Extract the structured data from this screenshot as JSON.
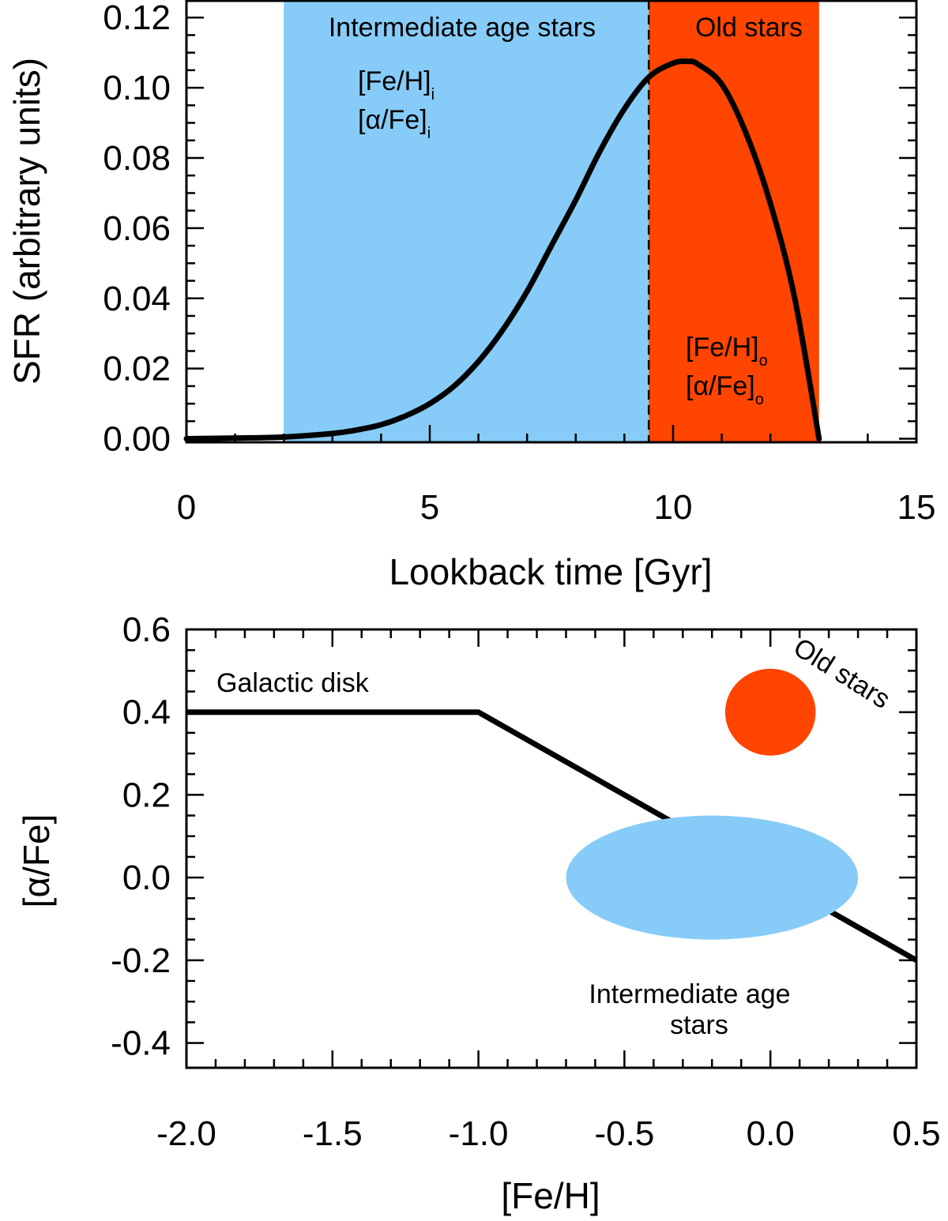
{
  "colors": {
    "intermediate": "#87CCF8",
    "old": "#FF4500",
    "line": "#000000"
  },
  "chart_data": [
    {
      "type": "line",
      "xlabel": "Lookback time [Gyr]",
      "ylabel": "SFR (arbitrary units)",
      "xlim": [
        0,
        15
      ],
      "ylim": [
        -0.001,
        0.125
      ],
      "xticks": [
        0,
        5,
        10,
        15
      ],
      "xtick_labels": [
        "0",
        "5",
        "10",
        "15"
      ],
      "yticks": [
        0.0,
        0.02,
        0.04,
        0.06,
        0.08,
        0.1,
        0.12
      ],
      "ytick_labels": [
        "0.00",
        "0.02",
        "0.04",
        "0.06",
        "0.08",
        "0.10",
        "0.12"
      ],
      "regions": [
        {
          "label": "Intermediate age stars",
          "x_start": 2.0,
          "x_end": 9.5,
          "color": "#87CCF8"
        },
        {
          "label": "Old stars",
          "x_start": 9.5,
          "x_end": 13.0,
          "color": "#FF4500"
        }
      ],
      "boundary_x": 9.5,
      "series": [
        {
          "x": [
            0,
            1,
            2,
            3,
            3.5,
            4,
            4.5,
            5,
            5.5,
            6,
            6.5,
            7,
            7.5,
            8,
            8.5,
            9,
            9.5,
            10,
            10.3,
            10.5,
            11,
            11.5,
            12,
            12.5,
            13
          ],
          "values": [
            0,
            0.0002,
            0.0005,
            0.0015,
            0.0025,
            0.004,
            0.0065,
            0.01,
            0.015,
            0.022,
            0.031,
            0.042,
            0.055,
            0.068,
            0.082,
            0.094,
            0.103,
            0.107,
            0.1075,
            0.1068,
            0.101,
            0.087,
            0.067,
            0.04,
            0.0
          ]
        }
      ],
      "annotations": [
        {
          "main": "[Fe/H]",
          "sub": "i",
          "x": 5.3,
          "y": 0.1
        },
        {
          "main": "[α/Fe]",
          "sub": "i",
          "x": 5.3,
          "y": 0.088
        },
        {
          "main": "[Fe/H]",
          "sub": "o",
          "x": 10.4,
          "y": 0.026
        },
        {
          "main": "[α/Fe]",
          "sub": "o",
          "x": 10.4,
          "y": 0.014
        }
      ]
    },
    {
      "type": "line",
      "xlabel": "[Fe/H]",
      "ylabel": "[α/Fe]",
      "xlim": [
        -2.0,
        0.5
      ],
      "ylim": [
        -0.46,
        0.6
      ],
      "xticks": [
        -2.0,
        -1.5,
        -1.0,
        -0.5,
        0.0,
        0.5
      ],
      "xtick_labels": [
        "-2.0",
        "-1.5",
        "-1.0",
        "-0.5",
        "0.0",
        "0.5"
      ],
      "yticks": [
        -0.4,
        -0.2,
        0.0,
        0.2,
        0.4,
        0.6
      ],
      "ytick_labels": [
        "-0.4",
        "-0.2",
        "0.0",
        "0.2",
        "0.4",
        "0.6"
      ],
      "series": [
        {
          "name": "Galactic disk",
          "x": [
            -2.0,
            -1.0,
            0.5
          ],
          "values": [
            0.4,
            0.4,
            -0.2
          ]
        }
      ],
      "regions": [
        {
          "label": "Old stars",
          "shape": "ellipse",
          "cx": 0.0,
          "cy": 0.4,
          "rx": 0.155,
          "ry": 0.105,
          "color": "#FF4500"
        },
        {
          "label": "Intermediate age stars",
          "shape": "ellipse",
          "cx": -0.2,
          "cy": 0.0,
          "rx": 0.5,
          "ry": 0.15,
          "color": "#87CCF8"
        }
      ],
      "annotations": [
        {
          "text": "Galactic disk",
          "x": -1.6,
          "y": 0.46
        },
        {
          "text": "Old stars",
          "x": 0.26,
          "y": 0.47,
          "rotate": 32
        },
        {
          "lines": [
            "Intermediate age",
            "stars"
          ],
          "x": -0.1,
          "y": -0.25
        }
      ]
    }
  ]
}
